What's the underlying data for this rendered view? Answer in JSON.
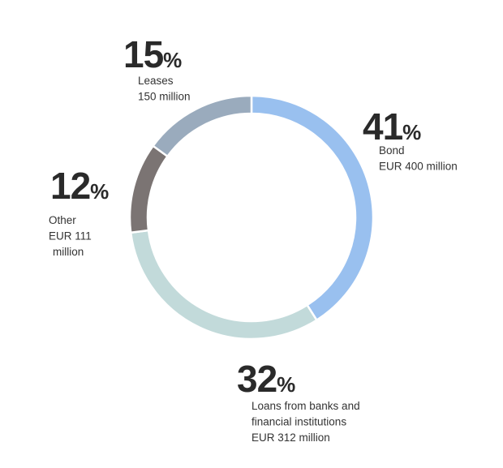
{
  "chart_data": {
    "type": "donut",
    "categories": [
      "Bond",
      "Loans from banks and financial institutions",
      "Other",
      "Leases"
    ],
    "values": [
      41,
      32,
      12,
      15
    ],
    "value_unit": "%",
    "labels": [
      [
        "Bond",
        "EUR 400 million"
      ],
      [
        "Loans from banks and",
        "financial institutions",
        "EUR 312 million"
      ],
      [
        "Other",
        "EUR 111",
        "million"
      ],
      [
        "Leases",
        "150 million"
      ]
    ],
    "colors": [
      "#99c0ef",
      "#c2dada",
      "#7b7473",
      "#9aabbd"
    ]
  }
}
